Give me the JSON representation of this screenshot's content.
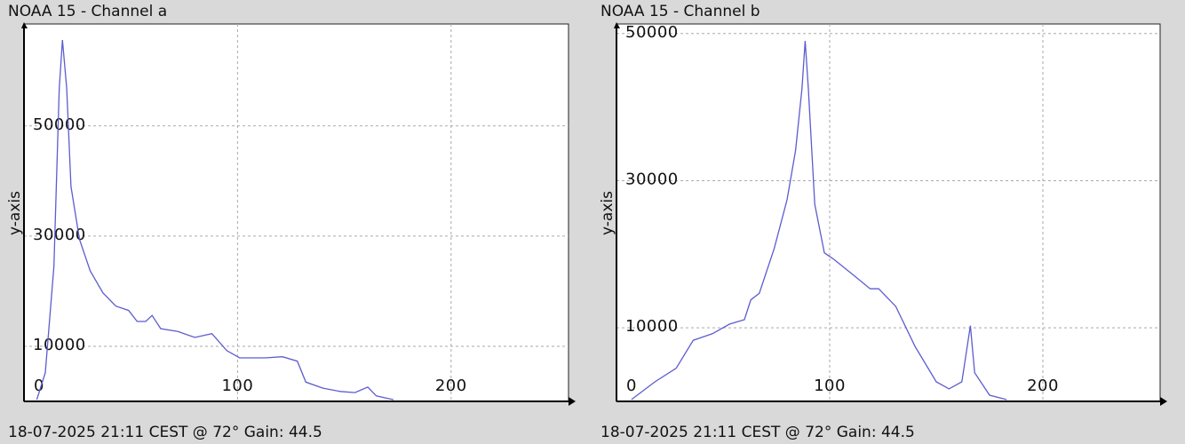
{
  "chart_data": [
    {
      "type": "line",
      "title": "NOAA 15 - Channel a",
      "y_label": "y-axis",
      "caption": "18-07-2025 21:11 CEST @ 72° Gain: 44.5",
      "x": [
        6,
        10,
        14,
        16.5,
        18,
        20,
        22,
        26,
        31,
        37,
        43,
        49,
        53,
        57,
        60,
        64,
        72,
        80,
        88,
        95,
        101,
        113,
        121,
        128,
        132,
        140,
        148,
        155,
        161,
        165,
        173
      ],
      "series": [
        {
          "name": "Channel a",
          "color": "#5c5ccf",
          "values": [
            300,
            5200,
            24500,
            56800,
            65600,
            56800,
            39000,
            29400,
            23700,
            19700,
            17300,
            16500,
            14500,
            14500,
            15600,
            13200,
            12700,
            11600,
            12300,
            9200,
            7900,
            7900,
            8100,
            7300,
            3500,
            2400,
            1800,
            1600,
            2600,
            1000,
            300
          ]
        }
      ],
      "xlim": [
        0,
        255
      ],
      "xticks": [
        0,
        100,
        200
      ],
      "ylim": [
        0,
        68500
      ],
      "yticks": [
        10000,
        30000,
        50000
      ],
      "grid": true
    },
    {
      "type": "line",
      "title": "NOAA 15 - Channel b",
      "y_label": "y-axis",
      "caption": "18-07-2025 21:11 CEST @ 72° Gain: 44.5",
      "x": [
        7,
        18,
        28,
        36,
        45,
        53,
        60,
        63,
        67,
        74,
        80,
        84,
        87,
        88.5,
        90,
        93,
        97.5,
        102,
        111,
        119,
        123,
        131,
        140,
        150,
        156,
        162,
        166,
        168,
        175,
        183
      ],
      "series": [
        {
          "name": "Channel b",
          "color": "#5c5ccf",
          "values": [
            240,
            2650,
            4500,
            8300,
            9200,
            10500,
            11100,
            13800,
            14700,
            20800,
            27400,
            34100,
            42500,
            49000,
            42500,
            26800,
            20200,
            19300,
            17200,
            15300,
            15300,
            12900,
            7500,
            2650,
            1700,
            2650,
            10300,
            3900,
            850,
            240
          ]
        }
      ],
      "xlim": [
        0,
        255
      ],
      "xticks": [
        0,
        100,
        200
      ],
      "ylim": [
        0,
        51300
      ],
      "yticks": [
        10000,
        30000,
        50000
      ],
      "grid": true
    }
  ]
}
